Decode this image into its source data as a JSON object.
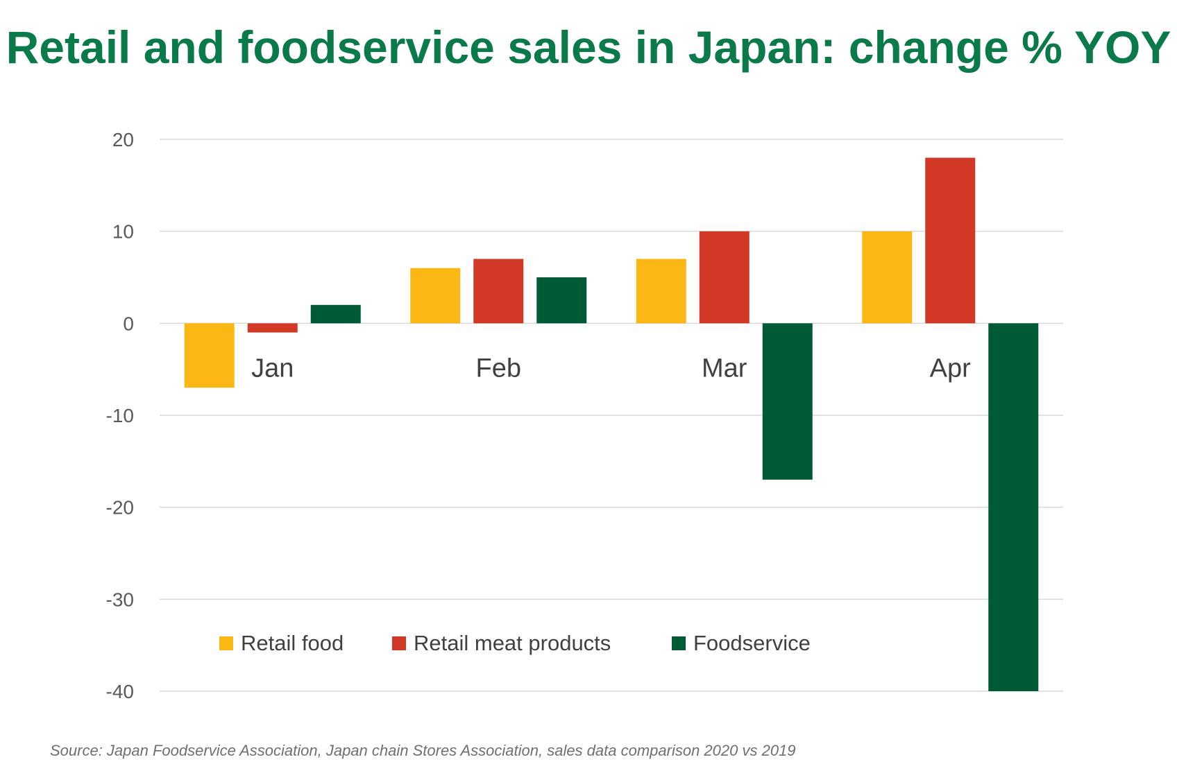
{
  "chart_data": {
    "type": "bar",
    "title": "Retail and foodservice sales in Japan: change % YOY",
    "categories": [
      "Jan",
      "Feb",
      "Mar",
      "Apr"
    ],
    "series": [
      {
        "name": "Retail food",
        "color": "#fbb714",
        "values": [
          -7,
          6,
          7,
          10
        ]
      },
      {
        "name": "Retail meat products",
        "color": "#d13826",
        "values": [
          -1,
          7,
          10,
          18
        ]
      },
      {
        "name": "Foodservice",
        "color": "#005a36",
        "values": [
          2,
          5,
          -17,
          -40
        ]
      }
    ],
    "ylim": [
      -40,
      20
    ],
    "yticks": [
      "20",
      "10",
      "0",
      "-10",
      "-20",
      "-30",
      "-40"
    ],
    "grid": true,
    "legend": "bottom-left inside plot"
  },
  "source": "Source: Japan Foodservice Association, Japan chain Stores Association, sales data comparison 2020 vs 2019"
}
